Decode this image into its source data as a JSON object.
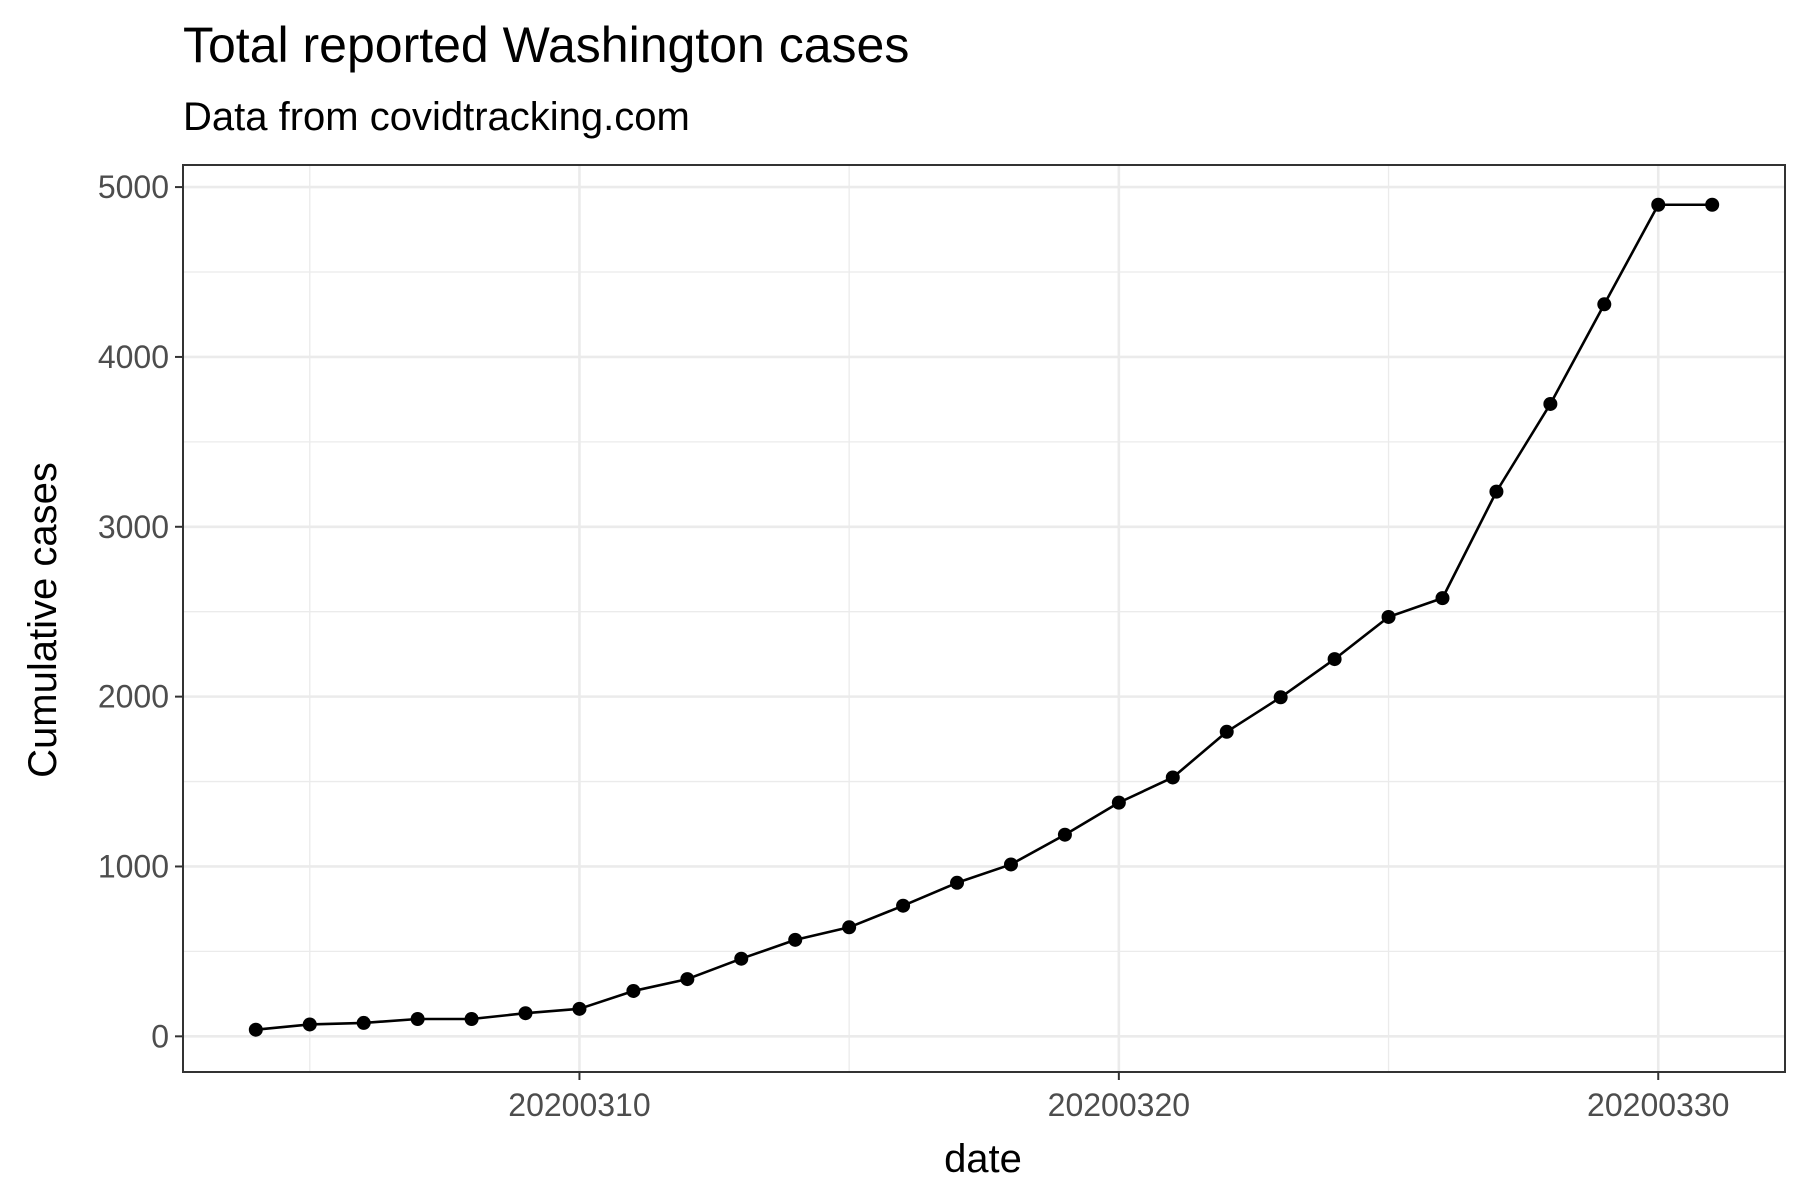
{
  "chart_data": {
    "type": "line",
    "title": "Total reported Washington cases",
    "subtitle": "Data from covidtracking.com",
    "xlabel": "date",
    "ylabel": "Cumulative cases",
    "x": [
      20200304,
      20200305,
      20200306,
      20200307,
      20200308,
      20200309,
      20200310,
      20200311,
      20200312,
      20200313,
      20200314,
      20200315,
      20200316,
      20200317,
      20200318,
      20200319,
      20200320,
      20200321,
      20200322,
      20200323,
      20200324,
      20200325,
      20200326,
      20200327,
      20200328,
      20200329,
      20200330,
      20200331
    ],
    "series": [
      {
        "values": [
          39,
          70,
          79,
          102,
          102,
          136,
          162,
          267,
          337,
          457,
          568,
          642,
          769,
          904,
          1012,
          1187,
          1376,
          1524,
          1793,
          1996,
          2221,
          2469,
          2580,
          3207,
          3723,
          4310,
          4896,
          4896
        ],
        "color": "#000000"
      }
    ],
    "xticks": [
      {
        "value": 20200310,
        "label": "20200310"
      },
      {
        "value": 20200320,
        "label": "20200320"
      },
      {
        "value": 20200330,
        "label": "20200330"
      }
    ],
    "yticks": [
      0,
      1000,
      2000,
      3000,
      4000,
      5000
    ],
    "ylim": [
      -210,
      5130
    ],
    "grid": true,
    "legend": "none"
  }
}
